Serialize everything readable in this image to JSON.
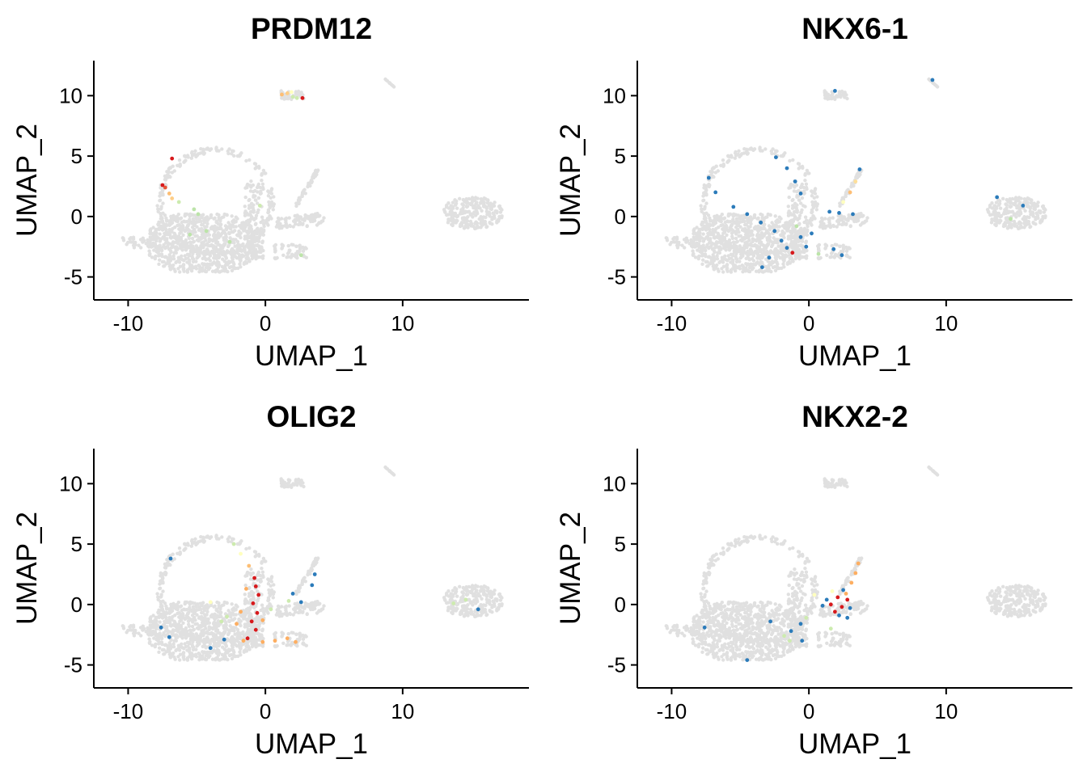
{
  "colors": {
    "background_cells": "#e0e0e0",
    "expression_scale": [
      "#2b7bba",
      "#abdda4",
      "#ffffbf",
      "#fdae61",
      "#d7191c"
    ]
  },
  "panel_axes": {
    "xlabel": "UMAP_1",
    "ylabel": "UMAP_2",
    "xticks": [
      -10,
      0,
      10
    ],
    "yticks": [
      -5,
      0,
      5,
      10
    ],
    "xlim": [
      -12.5,
      19.2
    ],
    "ylim": [
      -6.9,
      12.9
    ]
  },
  "chart_data": [
    {
      "type": "scatter",
      "title": "PRDM12",
      "xlabel": "UMAP_1",
      "ylabel": "UMAP_2",
      "xlim": [
        -12.5,
        19.2
      ],
      "ylim": [
        -6.9,
        12.9
      ],
      "grid": false,
      "expressing_points": [
        {
          "x": -7.5,
          "y": 2.6,
          "level": 1.0
        },
        {
          "x": -7.3,
          "y": 2.4,
          "level": 0.9
        },
        {
          "x": -6.8,
          "y": 4.8,
          "level": 1.0
        },
        {
          "x": -7.0,
          "y": 1.9,
          "level": 0.7
        },
        {
          "x": -6.8,
          "y": 1.5,
          "level": 0.65
        },
        {
          "x": -6.3,
          "y": 1.2,
          "level": 0.35
        },
        {
          "x": -5.2,
          "y": 0.6,
          "level": 0.3
        },
        {
          "x": -4.9,
          "y": 0.2,
          "level": 0.3
        },
        {
          "x": -5.5,
          "y": -1.5,
          "level": 0.3
        },
        {
          "x": -4.3,
          "y": -1.2,
          "level": 0.3
        },
        {
          "x": -2.6,
          "y": -2.1,
          "level": 0.3
        },
        {
          "x": -0.4,
          "y": 0.9,
          "level": 0.35
        },
        {
          "x": 1.6,
          "y": 10.2,
          "level": 0.65
        },
        {
          "x": 1.2,
          "y": 10.1,
          "level": 0.7
        },
        {
          "x": 2.0,
          "y": 9.9,
          "level": 0.35
        },
        {
          "x": 2.3,
          "y": 9.8,
          "level": 0.35
        },
        {
          "x": 2.7,
          "y": 9.8,
          "level": 1.0
        },
        {
          "x": 1.9,
          "y": 10.3,
          "level": 0.5
        },
        {
          "x": 2.6,
          "y": -3.2,
          "level": 0.3
        }
      ]
    },
    {
      "type": "scatter",
      "title": "NKX6-1",
      "xlabel": "UMAP_1",
      "ylabel": "UMAP_2",
      "xlim": [
        -12.5,
        19.2
      ],
      "ylim": [
        -6.9,
        12.9
      ],
      "grid": false,
      "expressing_points": [
        {
          "x": -7.3,
          "y": 3.2,
          "level": 0.0
        },
        {
          "x": -6.8,
          "y": 2.0,
          "level": 0.0
        },
        {
          "x": -5.5,
          "y": 0.8,
          "level": 0.0
        },
        {
          "x": -4.5,
          "y": 0.2,
          "level": 0.0
        },
        {
          "x": -3.5,
          "y": -0.5,
          "level": 0.0
        },
        {
          "x": -2.4,
          "y": 4.9,
          "level": 0.0
        },
        {
          "x": -1.6,
          "y": 4.0,
          "level": 0.0
        },
        {
          "x": -1.0,
          "y": 2.9,
          "level": 0.0
        },
        {
          "x": -0.6,
          "y": 1.9,
          "level": 0.0
        },
        {
          "x": -2.5,
          "y": -1.2,
          "level": 0.0
        },
        {
          "x": -2.0,
          "y": -2.0,
          "level": 0.0
        },
        {
          "x": -1.6,
          "y": -2.6,
          "level": 0.0
        },
        {
          "x": -1.2,
          "y": -3.0,
          "level": 1.0
        },
        {
          "x": -0.6,
          "y": -1.7,
          "level": 0.0
        },
        {
          "x": -0.2,
          "y": -2.5,
          "level": 0.0
        },
        {
          "x": -2.9,
          "y": -3.4,
          "level": 0.0
        },
        {
          "x": -3.4,
          "y": -4.2,
          "level": 0.0
        },
        {
          "x": -0.9,
          "y": -0.8,
          "level": 0.3
        },
        {
          "x": 0.2,
          "y": -1.4,
          "level": 0.0
        },
        {
          "x": 1.5,
          "y": 0.4,
          "level": 0.0
        },
        {
          "x": 2.2,
          "y": 0.3,
          "level": 0.0
        },
        {
          "x": 3.2,
          "y": 0.2,
          "level": 0.0
        },
        {
          "x": 2.5,
          "y": 1.2,
          "level": 0.5
        },
        {
          "x": 3.0,
          "y": 2.0,
          "level": 0.7
        },
        {
          "x": 3.4,
          "y": 2.9,
          "level": 0.6
        },
        {
          "x": 3.7,
          "y": 3.9,
          "level": 0.0
        },
        {
          "x": 1.8,
          "y": -2.7,
          "level": 0.0
        },
        {
          "x": 2.4,
          "y": -3.2,
          "level": 0.0
        },
        {
          "x": 0.7,
          "y": -3.1,
          "level": 0.3
        },
        {
          "x": 13.7,
          "y": 1.6,
          "level": 0.0
        },
        {
          "x": 15.6,
          "y": 0.9,
          "level": 0.0
        },
        {
          "x": 14.7,
          "y": -0.2,
          "level": 0.3
        },
        {
          "x": 9.0,
          "y": 11.3,
          "level": 0.0
        },
        {
          "x": 1.9,
          "y": 10.4,
          "level": 0.0
        }
      ]
    },
    {
      "type": "scatter",
      "title": "OLIG2",
      "xlabel": "UMAP_1",
      "ylabel": "UMAP_2",
      "xlim": [
        -12.5,
        19.2
      ],
      "ylim": [
        -6.9,
        12.9
      ],
      "grid": false,
      "expressing_points": [
        {
          "x": -0.8,
          "y": 2.2,
          "level": 1.0
        },
        {
          "x": -0.7,
          "y": 1.5,
          "level": 1.0
        },
        {
          "x": -0.5,
          "y": 0.8,
          "level": 1.0
        },
        {
          "x": -0.9,
          "y": 0.1,
          "level": 1.0
        },
        {
          "x": -0.6,
          "y": -0.7,
          "level": 1.0
        },
        {
          "x": -1.0,
          "y": -1.4,
          "level": 1.0
        },
        {
          "x": -0.7,
          "y": -2.1,
          "level": 1.0
        },
        {
          "x": -1.3,
          "y": -2.8,
          "level": 1.0
        },
        {
          "x": -1.8,
          "y": -0.6,
          "level": 0.75
        },
        {
          "x": -2.1,
          "y": -1.6,
          "level": 0.75
        },
        {
          "x": -1.6,
          "y": -3.0,
          "level": 0.75
        },
        {
          "x": -0.2,
          "y": -3.1,
          "level": 0.75
        },
        {
          "x": 0.7,
          "y": -3.0,
          "level": 0.75
        },
        {
          "x": 1.6,
          "y": -2.8,
          "level": 0.75
        },
        {
          "x": 2.2,
          "y": -3.1,
          "level": 0.75
        },
        {
          "x": -1.2,
          "y": 3.2,
          "level": 0.7
        },
        {
          "x": -1.8,
          "y": 4.2,
          "level": 0.5
        },
        {
          "x": -2.3,
          "y": 5.0,
          "level": 0.35
        },
        {
          "x": -2.8,
          "y": -1.0,
          "level": 0.35
        },
        {
          "x": -3.2,
          "y": -1.4,
          "level": 0.35
        },
        {
          "x": 0.4,
          "y": -0.4,
          "level": 0.35
        },
        {
          "x": 1.7,
          "y": 0.3,
          "level": 0.35
        },
        {
          "x": 2.6,
          "y": 0.2,
          "level": 0.0
        },
        {
          "x": 3.4,
          "y": 1.6,
          "level": 0.0
        },
        {
          "x": 3.6,
          "y": 2.5,
          "level": 0.0
        },
        {
          "x": 2.0,
          "y": 0.9,
          "level": 0.0
        },
        {
          "x": -3.0,
          "y": -2.9,
          "level": 0.0
        },
        {
          "x": -7.6,
          "y": -1.9,
          "level": 0.0
        },
        {
          "x": -7.0,
          "y": -2.7,
          "level": 0.0
        },
        {
          "x": -4.0,
          "y": -3.6,
          "level": 0.0
        },
        {
          "x": -6.9,
          "y": 3.8,
          "level": 0.0
        },
        {
          "x": -4.0,
          "y": 0.2,
          "level": 0.5
        },
        {
          "x": -0.2,
          "y": -1.3,
          "level": 0.75
        },
        {
          "x": -1.4,
          "y": 1.3,
          "level": 0.75
        },
        {
          "x": 14.6,
          "y": 0.4,
          "level": 0.35
        },
        {
          "x": 15.5,
          "y": -0.4,
          "level": 0.0
        },
        {
          "x": 13.7,
          "y": 0.1,
          "level": 0.35
        }
      ]
    },
    {
      "type": "scatter",
      "title": "NKX2-2",
      "xlabel": "UMAP_1",
      "ylabel": "UMAP_2",
      "xlim": [
        -12.5,
        19.2
      ],
      "ylim": [
        -6.9,
        12.9
      ],
      "grid": false,
      "expressing_points": [
        {
          "x": 2.1,
          "y": 0.6,
          "level": 1.0
        },
        {
          "x": 2.4,
          "y": -0.2,
          "level": 1.0
        },
        {
          "x": 1.6,
          "y": 0.0,
          "level": 1.0
        },
        {
          "x": 2.8,
          "y": 0.4,
          "level": 1.0
        },
        {
          "x": 1.9,
          "y": -0.6,
          "level": 1.0
        },
        {
          "x": 2.5,
          "y": 1.2,
          "level": 0.0
        },
        {
          "x": 1.3,
          "y": 0.4,
          "level": 0.0
        },
        {
          "x": 3.0,
          "y": -0.3,
          "level": 0.0
        },
        {
          "x": 2.2,
          "y": -0.9,
          "level": 0.0
        },
        {
          "x": 1.0,
          "y": -0.1,
          "level": 0.0
        },
        {
          "x": 3.1,
          "y": 1.8,
          "level": 0.75
        },
        {
          "x": 3.4,
          "y": 2.6,
          "level": 0.75
        },
        {
          "x": 3.6,
          "y": 3.4,
          "level": 0.75
        },
        {
          "x": 2.7,
          "y": 0.9,
          "level": 0.75
        },
        {
          "x": 1.7,
          "y": 1.1,
          "level": 0.5
        },
        {
          "x": 0.4,
          "y": 0.8,
          "level": 0.5
        },
        {
          "x": -0.6,
          "y": -1.6,
          "level": 0.0
        },
        {
          "x": -1.3,
          "y": -2.2,
          "level": 0.0
        },
        {
          "x": -0.5,
          "y": -3.0,
          "level": 0.0
        },
        {
          "x": -1.4,
          "y": -3.0,
          "level": 0.35
        },
        {
          "x": -1.8,
          "y": -2.6,
          "level": 0.35
        },
        {
          "x": -0.2,
          "y": -1.1,
          "level": 0.35
        },
        {
          "x": -7.6,
          "y": -1.9,
          "level": 0.0
        },
        {
          "x": -4.5,
          "y": -4.6,
          "level": 0.0
        },
        {
          "x": -2.8,
          "y": -1.4,
          "level": 0.0
        },
        {
          "x": 1.6,
          "y": -2.0,
          "level": 0.35
        },
        {
          "x": 2.8,
          "y": -1.1,
          "level": 0.0
        }
      ]
    }
  ]
}
